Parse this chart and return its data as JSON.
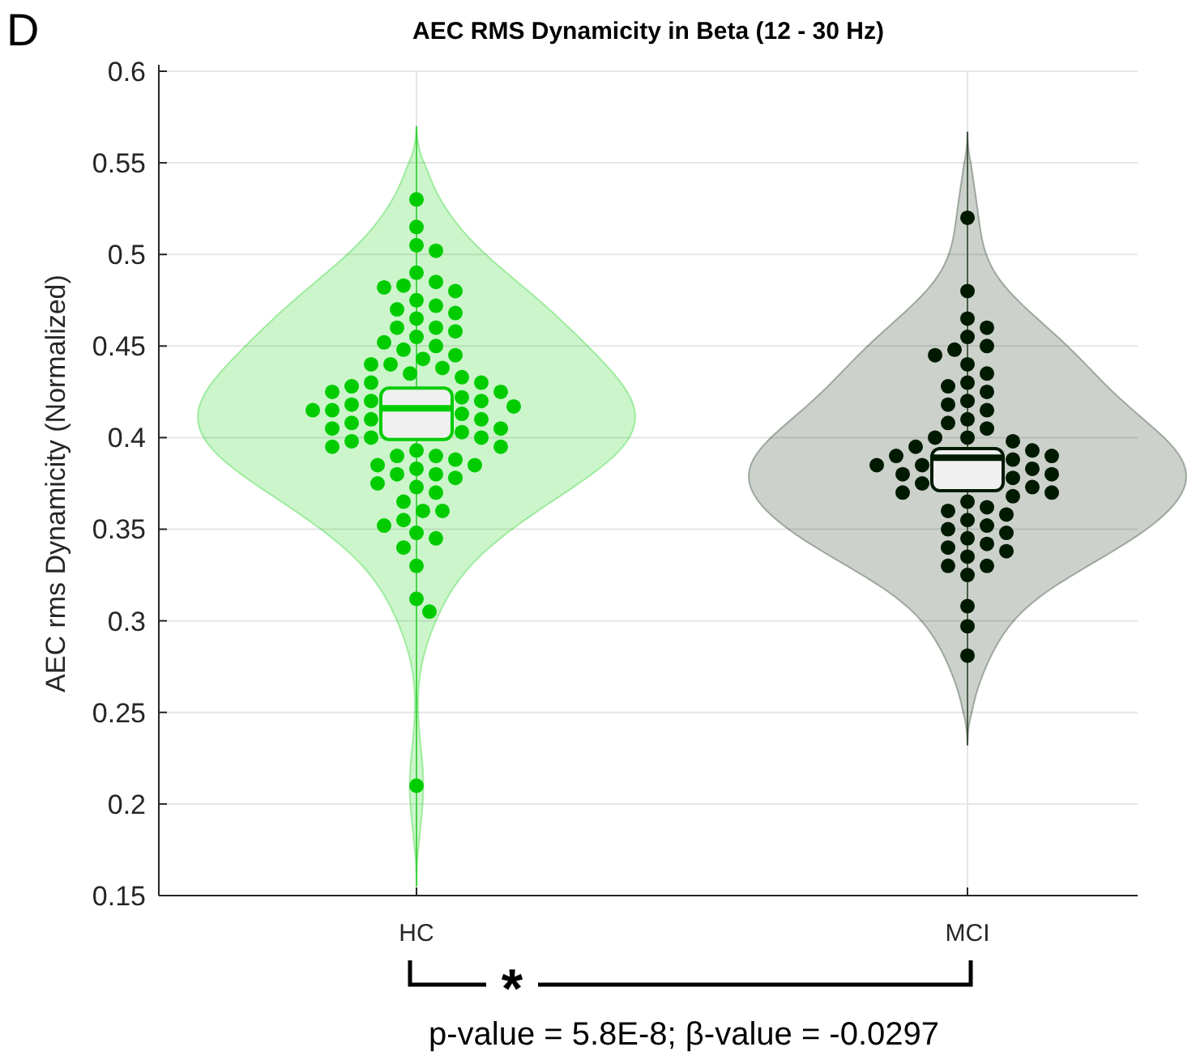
{
  "chart_data": {
    "type": "box",
    "title": "AEC RMS Dynamicity in Beta (12 - 30 Hz)",
    "ylabel": "AEC rms Dynamicity (Normalized)",
    "categories": [
      "HC",
      "MCI"
    ],
    "colors": [
      "#00cc00",
      "#001a00"
    ],
    "boxes": [
      {
        "low": 0.155,
        "q1": 0.399,
        "median": 0.416,
        "q3": 0.427,
        "high": 0.57
      },
      {
        "low": 0.232,
        "q1": 0.371,
        "median": 0.389,
        "q3": 0.394,
        "high": 0.567
      }
    ],
    "series": [
      {
        "type": "scatter",
        "color": "#00cc00",
        "x": [
          "HC",
          "HC",
          "HC",
          "HC",
          "HC",
          "HC",
          "HC",
          "HC",
          "HC",
          "HC",
          "HC",
          "HC",
          "HC",
          "HC",
          "HC",
          "HC",
          "HC",
          "HC",
          "HC",
          "HC",
          "HC",
          "HC",
          "HC",
          "HC",
          "HC",
          "HC",
          "HC",
          "HC",
          "HC",
          "HC",
          "HC",
          "HC",
          "HC",
          "HC",
          "HC",
          "HC",
          "HC",
          "HC",
          "HC",
          "HC",
          "HC",
          "HC",
          "HC",
          "HC",
          "HC",
          "HC",
          "HC",
          "HC",
          "HC",
          "HC",
          "HC",
          "HC",
          "HC",
          "HC",
          "HC",
          "HC",
          "HC",
          "HC",
          "HC",
          "HC",
          "HC",
          "HC",
          "HC",
          "HC",
          "HC",
          "HC",
          "HC",
          "HC",
          "HC",
          "HC",
          "HC",
          "HC",
          "HC",
          "HC",
          "HC",
          "HC",
          "HC"
        ],
        "values": [
          0.53,
          0.515,
          0.505,
          0.502,
          0.49,
          0.485,
          0.483,
          0.482,
          0.48,
          0.475,
          0.472,
          0.47,
          0.468,
          0.465,
          0.46,
          0.46,
          0.458,
          0.455,
          0.452,
          0.45,
          0.448,
          0.445,
          0.443,
          0.44,
          0.44,
          0.438,
          0.435,
          0.433,
          0.43,
          0.43,
          0.428,
          0.425,
          0.425,
          0.422,
          0.42,
          0.42,
          0.418,
          0.417,
          0.415,
          0.415,
          0.413,
          0.41,
          0.41,
          0.408,
          0.405,
          0.405,
          0.403,
          0.4,
          0.4,
          0.398,
          0.395,
          0.395,
          0.393,
          0.39,
          0.39,
          0.388,
          0.385,
          0.385,
          0.383,
          0.38,
          0.38,
          0.378,
          0.375,
          0.373,
          0.37,
          0.365,
          0.36,
          0.36,
          0.355,
          0.352,
          0.348,
          0.345,
          0.34,
          0.33,
          0.312,
          0.305,
          0.21
        ]
      },
      {
        "type": "scatter",
        "color": "#001a00",
        "x": [
          "MCI",
          "MCI",
          "MCI",
          "MCI",
          "MCI",
          "MCI",
          "MCI",
          "MCI",
          "MCI",
          "MCI",
          "MCI",
          "MCI",
          "MCI",
          "MCI",
          "MCI",
          "MCI",
          "MCI",
          "MCI",
          "MCI",
          "MCI",
          "MCI",
          "MCI",
          "MCI",
          "MCI",
          "MCI",
          "MCI",
          "MCI",
          "MCI",
          "MCI",
          "MCI",
          "MCI",
          "MCI",
          "MCI",
          "MCI",
          "MCI",
          "MCI",
          "MCI",
          "MCI",
          "MCI",
          "MCI",
          "MCI",
          "MCI",
          "MCI",
          "MCI",
          "MCI",
          "MCI",
          "MCI",
          "MCI",
          "MCI",
          "MCI",
          "MCI",
          "MCI",
          "MCI",
          "MCI",
          "MCI",
          "MCI",
          "MCI"
        ],
        "values": [
          0.52,
          0.48,
          0.465,
          0.46,
          0.455,
          0.45,
          0.448,
          0.445,
          0.44,
          0.435,
          0.43,
          0.428,
          0.425,
          0.42,
          0.418,
          0.415,
          0.41,
          0.408,
          0.405,
          0.4,
          0.4,
          0.398,
          0.395,
          0.393,
          0.39,
          0.39,
          0.388,
          0.385,
          0.385,
          0.383,
          0.38,
          0.38,
          0.378,
          0.375,
          0.373,
          0.37,
          0.37,
          0.368,
          0.365,
          0.362,
          0.36,
          0.358,
          0.355,
          0.352,
          0.35,
          0.348,
          0.345,
          0.342,
          0.34,
          0.338,
          0.335,
          0.33,
          0.33,
          0.325,
          0.308,
          0.297,
          0.281
        ]
      }
    ],
    "ylim": [
      0.15,
      0.6
    ],
    "yticks": [
      0.15,
      0.2,
      0.25,
      0.3,
      0.35,
      0.4,
      0.45,
      0.5,
      0.55,
      0.6
    ],
    "grid": true,
    "marker": "circle",
    "annotations": [
      "D",
      "*",
      "p-value = 5.8E-8; β-value = -0.0297"
    ]
  }
}
